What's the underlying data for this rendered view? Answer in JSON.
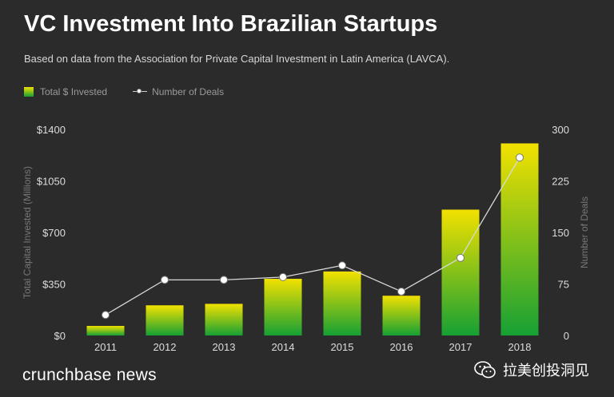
{
  "header": {
    "title": "VC Investment Into Brazilian Startups",
    "subtitle": "Based on data from the Association for Private Capital Investment in Latin America (LAVCA)."
  },
  "legend": {
    "bar_label": "Total $ Invested",
    "line_label": "Number of Deals"
  },
  "footer": {
    "brand": "crunchbase news",
    "watermark": "拉美创投洞见"
  },
  "colors": {
    "background": "#2b2b2b",
    "bar_top": "#f2e100",
    "bar_bottom": "#16a034",
    "line": "#d9d9d9",
    "marker": "#ffffff"
  },
  "chart_data": {
    "type": "bar",
    "title": "VC Investment Into Brazilian Startups",
    "categories": [
      "2011",
      "2012",
      "2013",
      "2014",
      "2015",
      "2016",
      "2017",
      "2018"
    ],
    "series": [
      {
        "name": "Total $ Invested",
        "kind": "bar",
        "axis": "left",
        "values": [
          65,
          205,
          215,
          385,
          435,
          270,
          855,
          1305
        ]
      },
      {
        "name": "Number of Deals",
        "kind": "line",
        "axis": "right",
        "values": [
          30,
          81,
          81,
          85,
          102,
          64,
          113,
          259
        ]
      }
    ],
    "ylabel": "Total Capital Invested (Millions)",
    "ylabel_right": "Number of Deals",
    "ylim": [
      0,
      1400
    ],
    "ylim_right": [
      0,
      300
    ],
    "yticks": [
      "$0",
      "$350",
      "$700",
      "$1050",
      "$1400"
    ],
    "yticks_right": [
      "0",
      "75",
      "150",
      "225",
      "300"
    ],
    "legend_position": "top-left",
    "grid": false
  }
}
